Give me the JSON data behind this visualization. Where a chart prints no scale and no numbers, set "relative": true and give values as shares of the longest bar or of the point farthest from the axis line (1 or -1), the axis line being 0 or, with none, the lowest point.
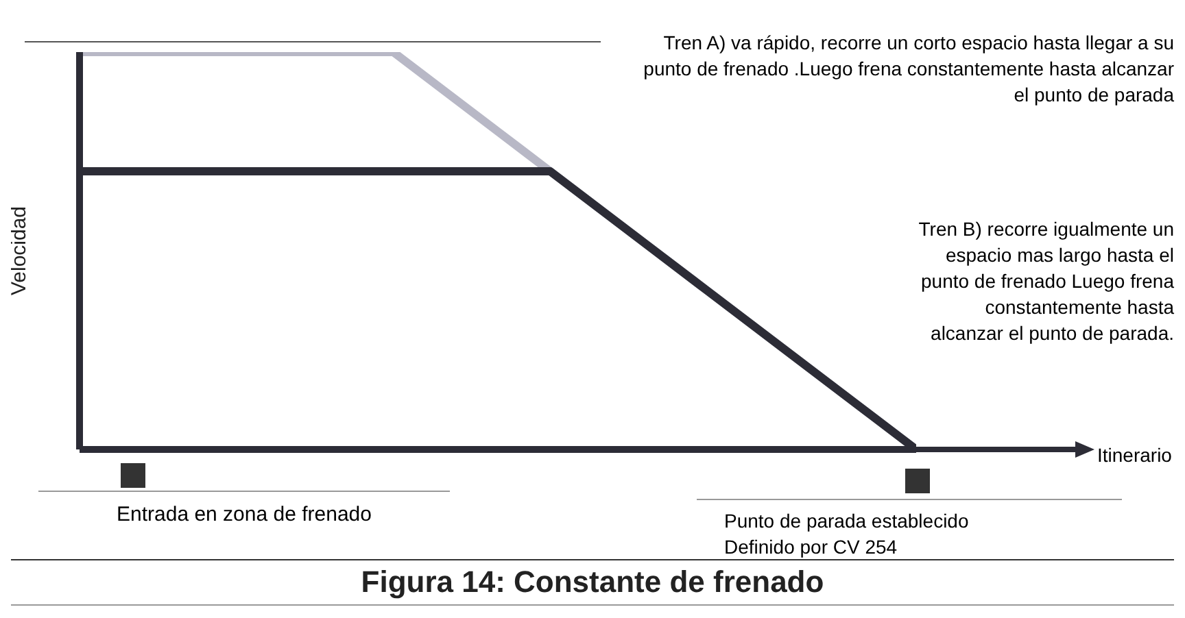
{
  "chart_data": {
    "type": "line",
    "title": "Figura 14: Constante de frenado",
    "ylabel": "Velocidad",
    "relative": true,
    "marker": "none",
    "line_style": "solid",
    "categories": [
      null,
      null,
      null,
      null,
      null,
      null,
      null,
      null,
      null,
      null,
      null,
      null,
      null,
      null,
      null,
      null,
      null
    ],
    "series": [
      {
        "color": "#b8b8c6",
        "values": [
          1,
          1,
          1,
          1,
          1,
          1,
          1,
          0.9,
          0.8,
          0.7,
          0.6,
          0.5,
          0.4,
          0.3,
          0.2,
          0.1,
          0
        ]
      },
      {
        "color": "#2c2c36",
        "values": [
          0.7,
          0.7,
          0.7,
          0.7,
          0.7,
          0.7,
          0.7,
          0.7,
          0.7,
          0.7,
          0.6,
          0.5,
          0.4,
          0.3,
          0.2,
          0.1,
          0
        ]
      }
    ],
    "annotations": [
      "Tren A) va rápido, recorre un corto espacio hasta llegar a su punto de frenado .Luego frena constantemente hasta alcanzar el punto de parada",
      "Tren B) recorre igualmente un espacio mas largo hasta el punto de frenado Luego frena constantemente hasta alcanzar el punto de parada.",
      "Entrada en zona de frenado",
      "Punto de parada establecido\nDefinido por CV 254",
      "Itinerario"
    ]
  }
}
